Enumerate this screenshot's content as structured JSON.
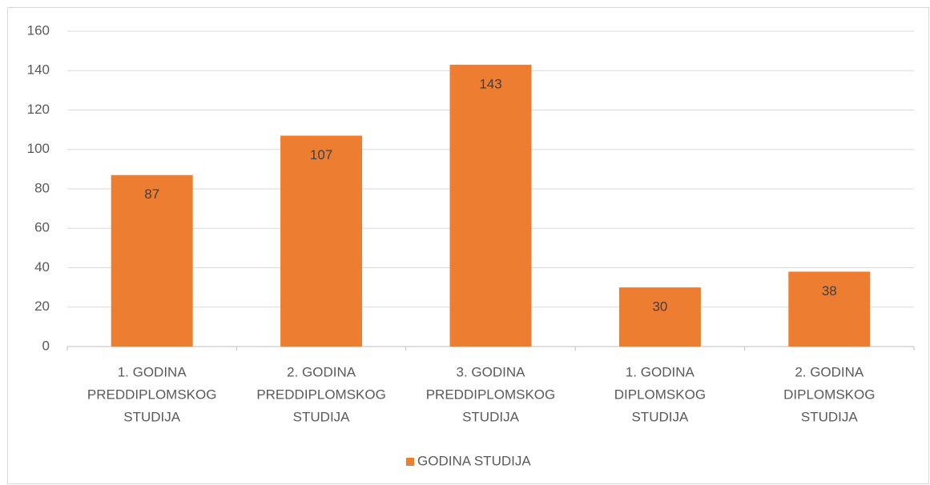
{
  "chart_data": {
    "type": "bar",
    "categories": [
      [
        "1. GODINA",
        "PREDDIPLOMSKOG",
        "STUDIJA"
      ],
      [
        "2. GODINA",
        "PREDDIPLOMSKOG",
        "STUDIJA"
      ],
      [
        "3. GODINA",
        "PREDDIPLOMSKOG",
        "STUDIJA"
      ],
      [
        "1. GODINA",
        "DIPLOMSKOG",
        "STUDIJA"
      ],
      [
        "2. GODINA",
        "DIPLOMSKOG",
        "STUDIJA"
      ]
    ],
    "series": [
      {
        "name": "GODINA STUDIJA",
        "color": "#ed7d31",
        "values": [
          87,
          107,
          143,
          30,
          38
        ]
      }
    ],
    "ylim": [
      0,
      160
    ],
    "yticks": [
      0,
      20,
      40,
      60,
      80,
      100,
      120,
      140,
      160
    ],
    "grid": true,
    "legend": "bottom"
  }
}
